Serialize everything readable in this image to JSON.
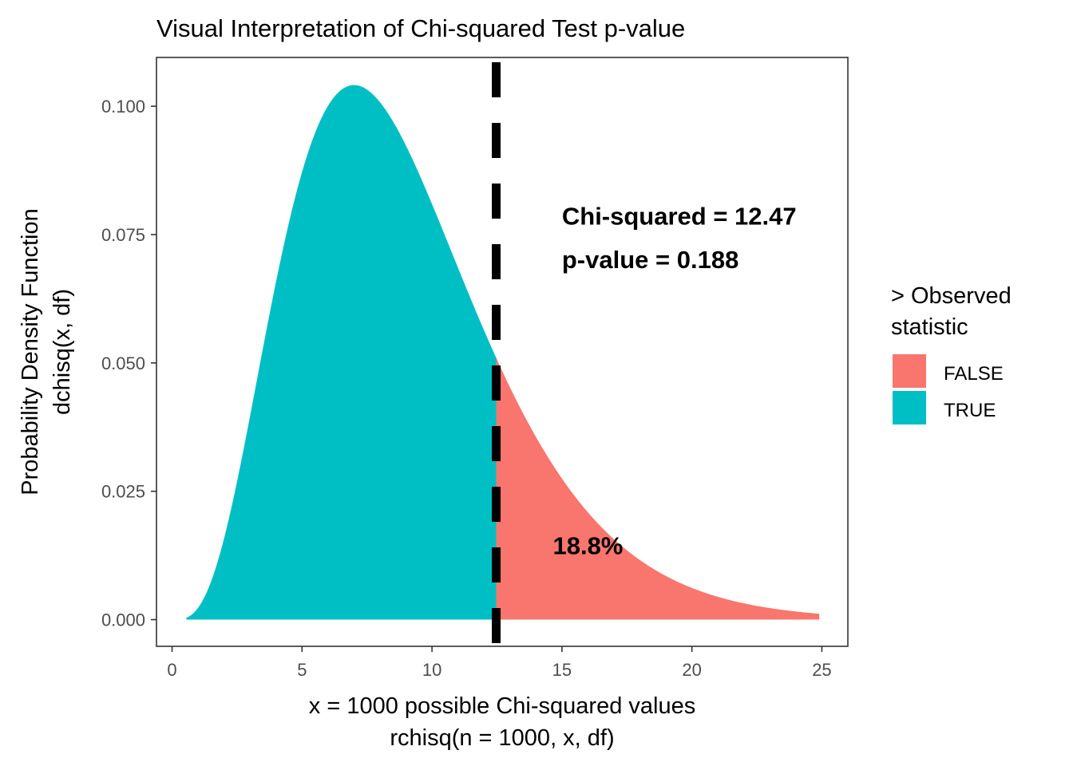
{
  "chart_data": {
    "type": "area",
    "title": "Visual Interpretation of Chi-squared Test p-value",
    "xlabel_line1": "x = 1000 possible Chi-squared values",
    "xlabel_line2": "rchisq(n = 1000, x, df)",
    "ylabel_line1": "Probability Density Function",
    "ylabel_line2": "dchisq(x, df)",
    "df": 9,
    "x_range_data": [
      0.55,
      24.9
    ],
    "xlim": [
      -0.6,
      26.0
    ],
    "ylim": [
      -0.0052,
      0.1095
    ],
    "x_ticks": [
      0,
      5,
      10,
      15,
      20,
      25
    ],
    "x_tick_labels": [
      "0",
      "5",
      "10",
      "15",
      "20",
      "25"
    ],
    "y_ticks": [
      0.0,
      0.025,
      0.05,
      0.075,
      0.1
    ],
    "y_tick_labels": [
      "0.000",
      "0.025",
      "0.050",
      "0.075",
      "0.100"
    ],
    "observed_statistic": 12.47,
    "p_value": 0.188,
    "series": [
      {
        "name": "FALSE",
        "color": "#F8766D",
        "x_from": 12.47,
        "x_to": 24.9
      },
      {
        "name": "TRUE",
        "color": "#00BFC4",
        "x_from": 0.55,
        "x_to": 12.47
      }
    ],
    "annotations": {
      "chi_text": "Chi-squared = 12.47",
      "p_text": "p-value = 0.188",
      "pct_text": "18.8%",
      "chi_pos": [
        15.0,
        0.0785
      ],
      "p_pos": [
        15.0,
        0.07
      ],
      "pct_pos": [
        16.0,
        0.0143
      ]
    },
    "vline": {
      "x": 12.47,
      "style": "dashed",
      "color": "#000000"
    },
    "grid": false,
    "legend": {
      "title_line1": "> Observed",
      "title_line2": "statistic",
      "placement": "right",
      "items": [
        {
          "label": "FALSE",
          "color": "#F8766D"
        },
        {
          "label": "TRUE",
          "color": "#00BFC4"
        }
      ]
    }
  }
}
